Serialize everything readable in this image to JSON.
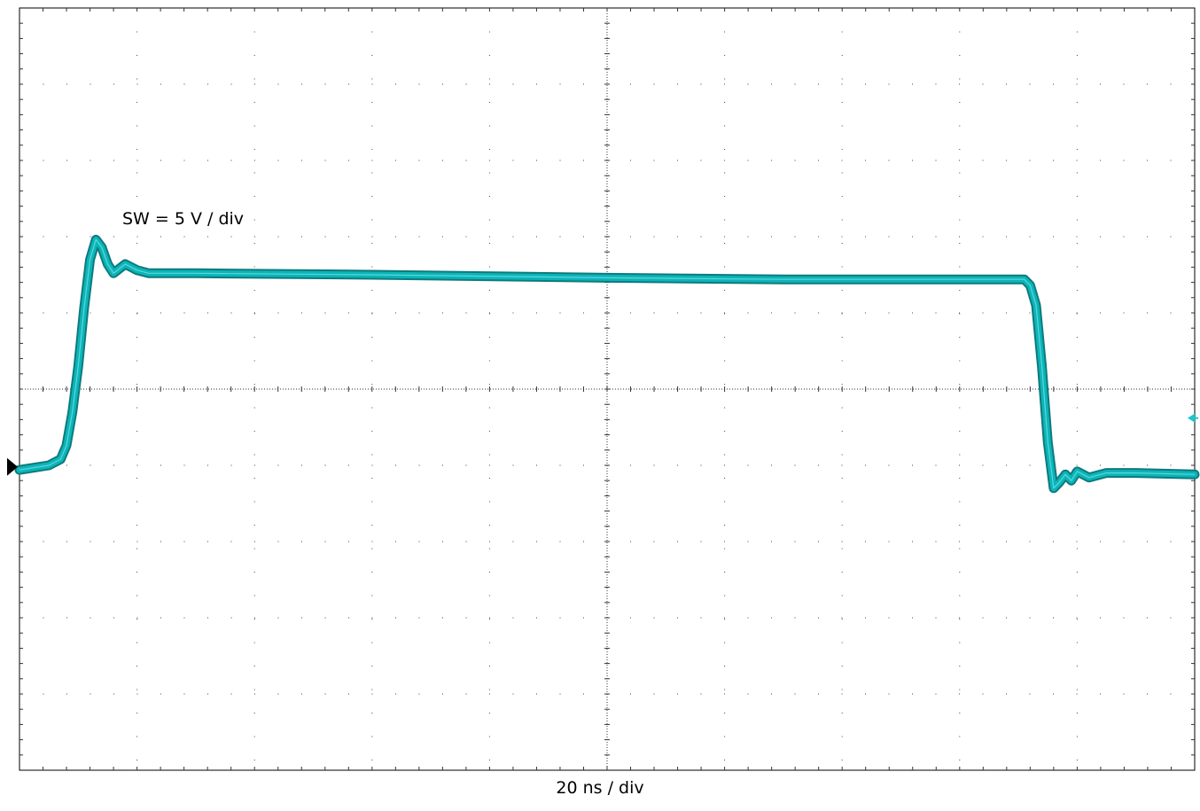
{
  "chart_data": {
    "type": "line",
    "title": "",
    "xlabel": "20 ns / div",
    "ylabel": "",
    "x_unit": "ns",
    "y_unit": "V",
    "xlim": [
      0,
      200
    ],
    "ylim": [
      -25,
      25
    ],
    "grid": true,
    "series": [
      {
        "name": "SW = 5 V / div",
        "color": "#0bb5b8",
        "x": [
          0,
          5,
          7,
          8,
          9,
          10,
          11,
          12,
          13,
          14,
          15,
          16,
          18,
          20,
          22,
          25,
          30,
          60,
          100,
          130,
          155,
          171,
          172,
          173,
          174,
          175,
          176,
          177,
          178,
          179,
          180,
          182,
          185,
          190,
          200
        ],
        "y": [
          -5.3,
          -5.0,
          -4.6,
          -3.7,
          -1.5,
          1.5,
          5.3,
          8.5,
          9.8,
          9.3,
          8.2,
          7.6,
          8.2,
          7.8,
          7.6,
          7.6,
          7.6,
          7.5,
          7.3,
          7.2,
          7.2,
          7.2,
          6.8,
          5.5,
          1.5,
          -3.5,
          -6.5,
          -6.1,
          -5.6,
          -6.0,
          -5.4,
          -5.8,
          -5.5,
          -5.5,
          -5.6
        ]
      }
    ]
  },
  "trace_label": "SW = 5 V / div",
  "colors": {
    "trace": "#0bb5b8",
    "trace_edge": "#0e7a7d",
    "grid": "#000000",
    "ground_marker": "#000000",
    "trigger_marker": "#18c8d0"
  }
}
